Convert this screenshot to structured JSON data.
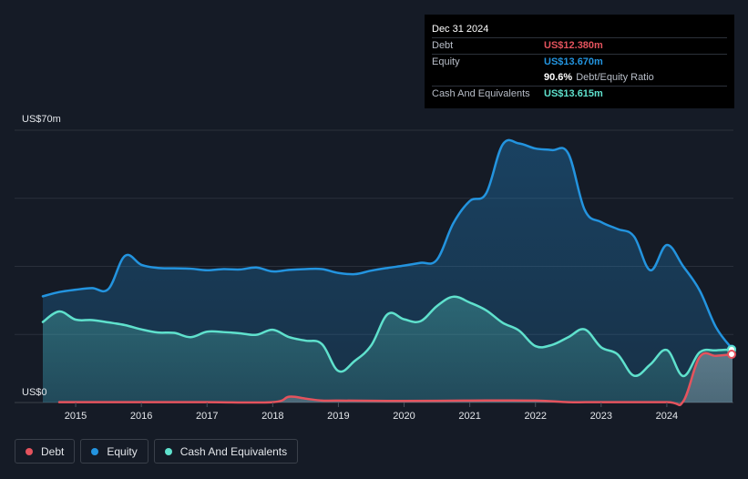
{
  "tooltip": {
    "date": "Dec 31 2024",
    "debt_label": "Debt",
    "debt_value": "US$12.380m",
    "equity_label": "Equity",
    "equity_value": "US$13.670m",
    "ratio_value": "90.6%",
    "ratio_label": "Debt/Equity Ratio",
    "cash_label": "Cash And Equivalents",
    "cash_value": "US$13.615m"
  },
  "legend": {
    "debt": "Debt",
    "equity": "Equity",
    "cash": "Cash And Equivalents"
  },
  "colors": {
    "debt": "#e4535d",
    "equity": "#2394df",
    "cash": "#5fe1cd",
    "background": "#151b26"
  },
  "chart_data": {
    "type": "area",
    "ylabel_top": "US$70m",
    "ylabel_bottom": "US$0",
    "ylim": [
      0,
      70
    ],
    "xlim": [
      2014.5,
      2025.0
    ],
    "x_ticks": [
      "2015",
      "2016",
      "2017",
      "2018",
      "2019",
      "2020",
      "2021",
      "2022",
      "2023",
      "2024"
    ],
    "grid": true,
    "series": [
      {
        "name": "Equity",
        "points": [
          [
            2014.5,
            27.3
          ],
          [
            2014.75,
            28.4
          ],
          [
            2015.0,
            29.0
          ],
          [
            2015.25,
            29.4
          ],
          [
            2015.5,
            29.2
          ],
          [
            2015.75,
            37.7
          ],
          [
            2016.0,
            35.4
          ],
          [
            2016.25,
            34.6
          ],
          [
            2016.5,
            34.5
          ],
          [
            2016.75,
            34.4
          ],
          [
            2017.0,
            34.0
          ],
          [
            2017.25,
            34.3
          ],
          [
            2017.5,
            34.2
          ],
          [
            2017.75,
            34.7
          ],
          [
            2018.0,
            33.7
          ],
          [
            2018.25,
            34.1
          ],
          [
            2018.5,
            34.3
          ],
          [
            2018.75,
            34.3
          ],
          [
            2019.0,
            33.3
          ],
          [
            2019.25,
            33.0
          ],
          [
            2019.5,
            33.9
          ],
          [
            2019.75,
            34.6
          ],
          [
            2020.0,
            35.2
          ],
          [
            2020.25,
            35.9
          ],
          [
            2020.5,
            36.7
          ],
          [
            2020.75,
            46.1
          ],
          [
            2021.0,
            51.8
          ],
          [
            2021.25,
            53.8
          ],
          [
            2021.5,
            66.3
          ],
          [
            2021.75,
            66.6
          ],
          [
            2022.0,
            65.3
          ],
          [
            2022.25,
            64.9
          ],
          [
            2022.5,
            64.0
          ],
          [
            2022.75,
            49.5
          ],
          [
            2023.0,
            46.4
          ],
          [
            2023.25,
            44.6
          ],
          [
            2023.5,
            42.7
          ],
          [
            2023.75,
            34.0
          ],
          [
            2024.0,
            40.5
          ],
          [
            2024.25,
            35.0
          ],
          [
            2024.5,
            28.8
          ],
          [
            2024.75,
            19.3
          ],
          [
            2025.0,
            13.7
          ]
        ]
      },
      {
        "name": "Cash And Equivalents",
        "points": [
          [
            2014.5,
            20.7
          ],
          [
            2014.75,
            23.4
          ],
          [
            2015.0,
            21.3
          ],
          [
            2015.25,
            21.2
          ],
          [
            2015.5,
            20.6
          ],
          [
            2015.75,
            19.9
          ],
          [
            2016.0,
            18.8
          ],
          [
            2016.25,
            18.0
          ],
          [
            2016.5,
            17.9
          ],
          [
            2016.75,
            16.8
          ],
          [
            2017.0,
            18.2
          ],
          [
            2017.25,
            18.1
          ],
          [
            2017.5,
            17.8
          ],
          [
            2017.75,
            17.4
          ],
          [
            2018.0,
            18.7
          ],
          [
            2018.25,
            16.8
          ],
          [
            2018.5,
            15.9
          ],
          [
            2018.75,
            15.0
          ],
          [
            2019.0,
            8.1
          ],
          [
            2019.25,
            10.7
          ],
          [
            2019.5,
            14.7
          ],
          [
            2019.75,
            22.7
          ],
          [
            2020.0,
            21.4
          ],
          [
            2020.25,
            20.9
          ],
          [
            2020.5,
            24.8
          ],
          [
            2020.75,
            27.2
          ],
          [
            2021.0,
            25.7
          ],
          [
            2021.25,
            23.7
          ],
          [
            2021.5,
            20.5
          ],
          [
            2021.75,
            18.5
          ],
          [
            2022.0,
            14.5
          ],
          [
            2022.25,
            14.8
          ],
          [
            2022.5,
            16.8
          ],
          [
            2022.75,
            18.8
          ],
          [
            2023.0,
            14.2
          ],
          [
            2023.25,
            12.4
          ],
          [
            2023.5,
            6.9
          ],
          [
            2023.75,
            9.8
          ],
          [
            2024.0,
            13.5
          ],
          [
            2024.25,
            6.8
          ],
          [
            2024.5,
            12.9
          ],
          [
            2024.75,
            13.4
          ],
          [
            2025.0,
            13.6
          ]
        ]
      },
      {
        "name": "Debt",
        "points": [
          [
            2014.75,
            0.1
          ],
          [
            2015.0,
            0.1
          ],
          [
            2016.0,
            0.1
          ],
          [
            2017.0,
            0.1
          ],
          [
            2018.0,
            0.1
          ],
          [
            2018.25,
            1.5
          ],
          [
            2018.5,
            1.0
          ],
          [
            2018.75,
            0.5
          ],
          [
            2019.0,
            0.5
          ],
          [
            2020.0,
            0.4
          ],
          [
            2021.0,
            0.5
          ],
          [
            2022.0,
            0.5
          ],
          [
            2022.5,
            0.1
          ],
          [
            2023.0,
            0.1
          ],
          [
            2024.0,
            0.1
          ],
          [
            2024.25,
            0.3
          ],
          [
            2024.5,
            11.7
          ],
          [
            2024.75,
            12.0
          ],
          [
            2025.0,
            12.4
          ]
        ]
      }
    ]
  }
}
